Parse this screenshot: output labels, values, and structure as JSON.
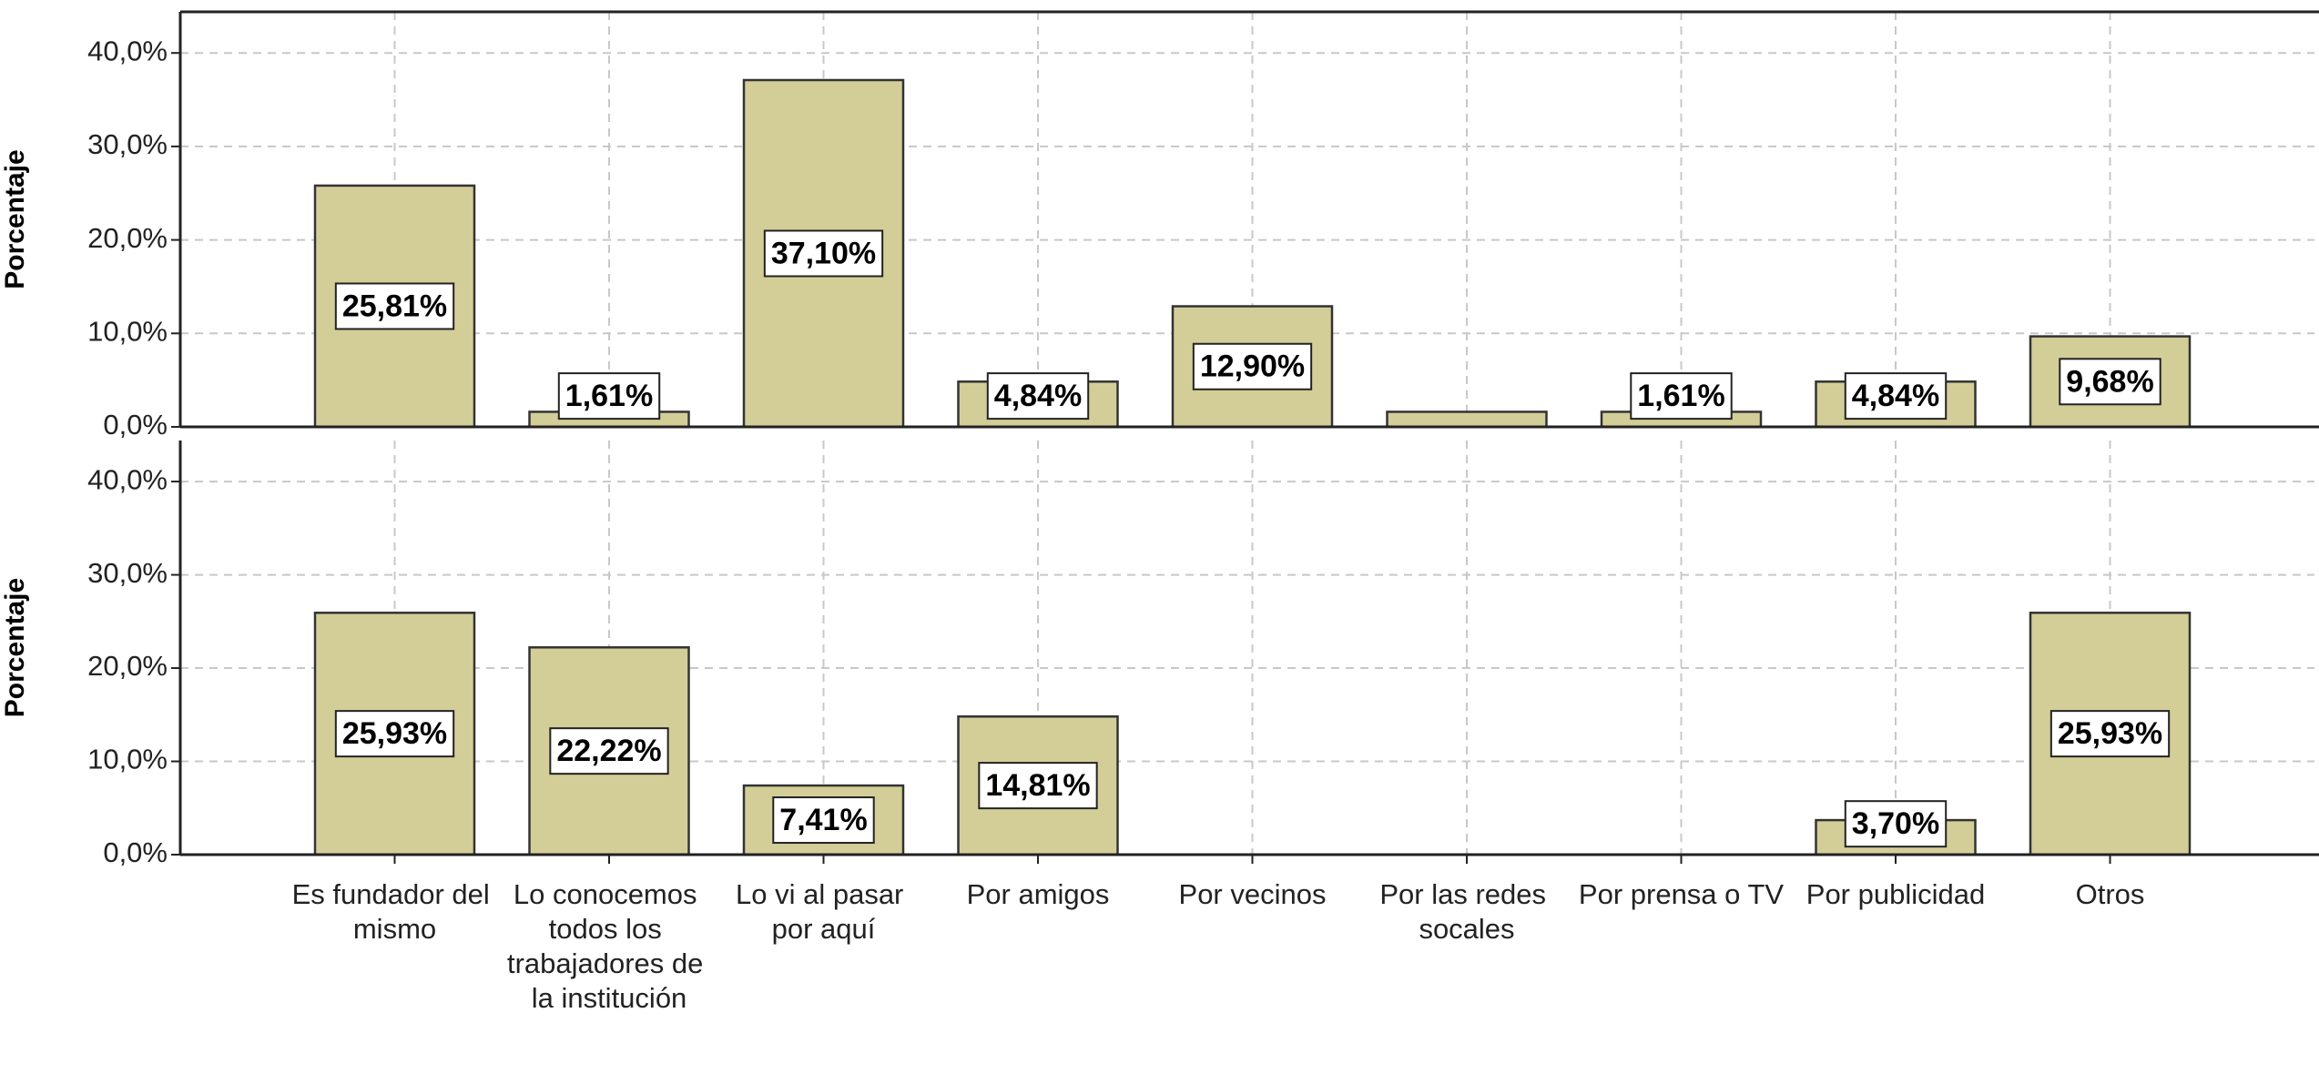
{
  "chart_data": [
    {
      "type": "bar",
      "y_label": "Porcentaje",
      "values": [
        25.81,
        1.61,
        37.1,
        4.84,
        12.9,
        1.61,
        1.61,
        4.84,
        9.68
      ],
      "value_labels": [
        "25,81%",
        "1,61%",
        "37,10%",
        "4,84%",
        "12,90%",
        null,
        "1,61%",
        "4,84%",
        "9,68%"
      ],
      "color": "#d3ce98",
      "ylim": [
        0,
        44.4
      ],
      "yticks": [
        {
          "value": 0,
          "label": "0,0%"
        },
        {
          "value": 10,
          "label": "10,0%"
        },
        {
          "value": 20,
          "label": "20,0%"
        },
        {
          "value": 30,
          "label": "30,0%"
        },
        {
          "value": 40,
          "label": "40,0%"
        }
      ],
      "grid": true
    },
    {
      "type": "bar",
      "y_label": "Porcentaje",
      "categories": [
        "Es fundador del mismo",
        "Lo conocemos todos los trabajadores de la institución",
        "Lo vi al pasar por aquí",
        "Por amigos",
        "Por vecinos",
        "Por las redes socales",
        "Por prensa o TV",
        "Por publicidad",
        "Otros"
      ],
      "values": [
        25.93,
        22.22,
        7.41,
        14.81,
        0,
        0,
        0,
        3.7,
        25.93
      ],
      "value_labels": [
        "25,93%",
        "22,22%",
        "7,41%",
        "14,81%",
        null,
        null,
        null,
        "3,70%",
        "25,93%"
      ],
      "color": "#d3ce98",
      "ylim": [
        0,
        44.4
      ],
      "yticks": [
        {
          "value": 0,
          "label": "0,0%"
        },
        {
          "value": 10,
          "label": "10,0%"
        },
        {
          "value": 20,
          "label": "20,0%"
        },
        {
          "value": 30,
          "label": "30,0%"
        },
        {
          "value": 40,
          "label": "40,0%"
        }
      ],
      "grid": true
    }
  ]
}
